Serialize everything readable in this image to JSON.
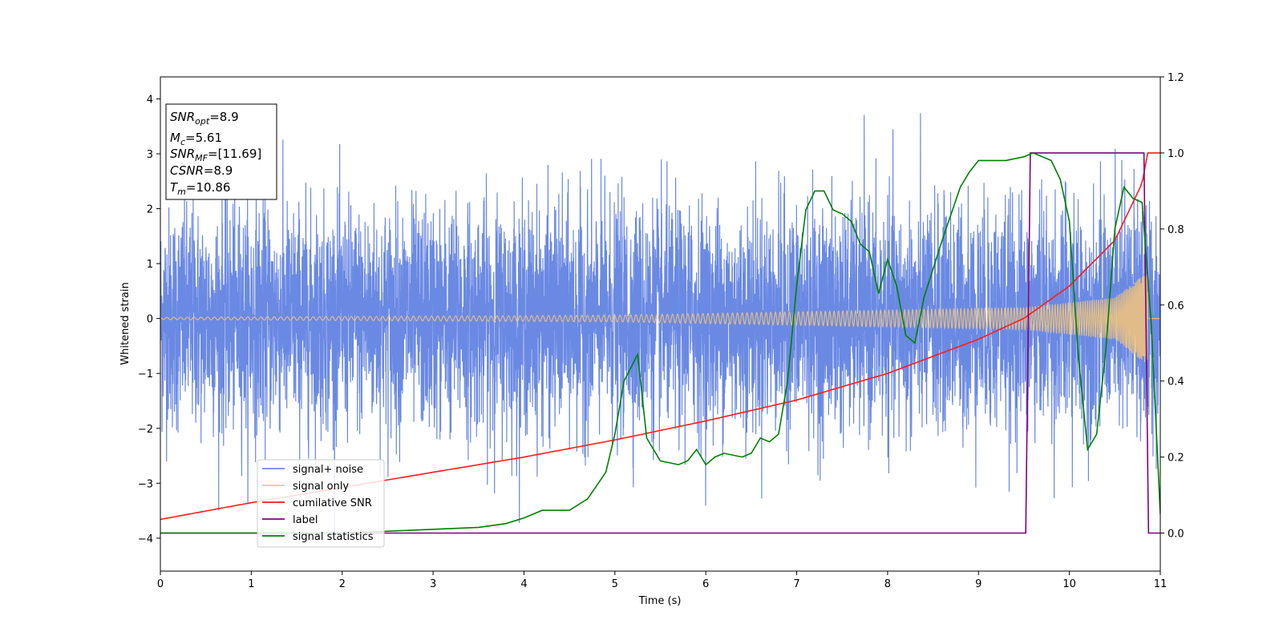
{
  "chart_data": {
    "type": "line",
    "xlabel": "Time (s)",
    "ylabel": "Whitened strain",
    "xlim": [
      0,
      11
    ],
    "ylim": [
      -4.6,
      4.4
    ],
    "y2lim": [
      -0.1,
      1.2
    ],
    "x_ticks": [
      0,
      1,
      2,
      3,
      4,
      5,
      6,
      7,
      8,
      9,
      10,
      11
    ],
    "y_ticks": [
      -4,
      -3,
      -2,
      -1,
      0,
      1,
      2,
      3,
      4
    ],
    "y2_ticks": [
      0.0,
      0.2,
      0.4,
      0.6,
      0.8,
      1.0,
      1.2
    ],
    "legend_position": "lower-left",
    "annotation_box": {
      "lines": [
        {
          "main": "SNR",
          "sub": "opt",
          "rest": "=8.9"
        },
        {
          "main": "M",
          "sub": "c",
          "rest": "=5.61"
        },
        {
          "main": "SNR",
          "sub": "MF",
          "rest": "=[11.69]"
        },
        {
          "main": "CSNR",
          "sub": "",
          "rest": "=8.9"
        },
        {
          "main": "T",
          "sub": "m",
          "rest": "=10.86"
        }
      ]
    },
    "series": [
      {
        "name": "signal+ noise",
        "axis": "left",
        "color": "#6a89e3",
        "kind": "noise",
        "amplitude_sd": 1.0
      },
      {
        "name": "signal only",
        "axis": "left",
        "color": "#f5c67a",
        "kind": "chirp",
        "amplitude_x": [
          0,
          5,
          9.5,
          10.5,
          10.86
        ],
        "amplitude_y": [
          0.02,
          0.06,
          0.2,
          0.38,
          0.85
        ]
      },
      {
        "name": "cumilative SNR",
        "axis": "right",
        "color": "#ff1a1a",
        "x": [
          0,
          1,
          2,
          3,
          4,
          5,
          6,
          7,
          8,
          9,
          9.5,
          10,
          10.5,
          10.8,
          10.86,
          11
        ],
        "y": [
          0.036,
          0.08,
          0.12,
          0.16,
          0.2,
          0.245,
          0.295,
          0.35,
          0.42,
          0.51,
          0.565,
          0.65,
          0.77,
          0.92,
          1.0,
          1.0
        ]
      },
      {
        "name": "label",
        "axis": "right",
        "color": "#800080",
        "x": [
          0,
          9.52,
          9.57,
          10.82,
          10.87,
          11
        ],
        "y": [
          0.0,
          0.0,
          1.0,
          1.0,
          0.0,
          0.0
        ]
      },
      {
        "name": "signal statistics",
        "axis": "right",
        "color": "#008000",
        "x": [
          0,
          1,
          2,
          2.5,
          3,
          3.5,
          3.8,
          4.0,
          4.2,
          4.5,
          4.7,
          4.9,
          5.0,
          5.1,
          5.25,
          5.35,
          5.5,
          5.7,
          5.8,
          5.9,
          6.0,
          6.1,
          6.2,
          6.4,
          6.5,
          6.6,
          6.7,
          6.8,
          6.9,
          7.0,
          7.1,
          7.2,
          7.3,
          7.4,
          7.5,
          7.6,
          7.7,
          7.8,
          7.9,
          8.0,
          8.1,
          8.2,
          8.3,
          8.4,
          8.6,
          8.8,
          8.9,
          9.0,
          9.3,
          9.5,
          9.6,
          9.8,
          9.9,
          10.0,
          10.1,
          10.2,
          10.3,
          10.4,
          10.5,
          10.6,
          10.7,
          10.8,
          10.9,
          11.0
        ],
        "y": [
          0.0,
          0.0,
          0.0,
          0.005,
          0.01,
          0.015,
          0.025,
          0.04,
          0.06,
          0.06,
          0.09,
          0.16,
          0.26,
          0.4,
          0.47,
          0.25,
          0.19,
          0.18,
          0.19,
          0.22,
          0.18,
          0.2,
          0.21,
          0.2,
          0.21,
          0.25,
          0.24,
          0.26,
          0.4,
          0.65,
          0.85,
          0.9,
          0.9,
          0.85,
          0.84,
          0.82,
          0.76,
          0.74,
          0.63,
          0.72,
          0.65,
          0.52,
          0.5,
          0.62,
          0.77,
          0.91,
          0.95,
          0.98,
          0.98,
          0.99,
          1.0,
          0.98,
          0.93,
          0.82,
          0.46,
          0.22,
          0.26,
          0.48,
          0.8,
          0.91,
          0.88,
          0.87,
          0.55,
          0.05
        ]
      }
    ]
  }
}
